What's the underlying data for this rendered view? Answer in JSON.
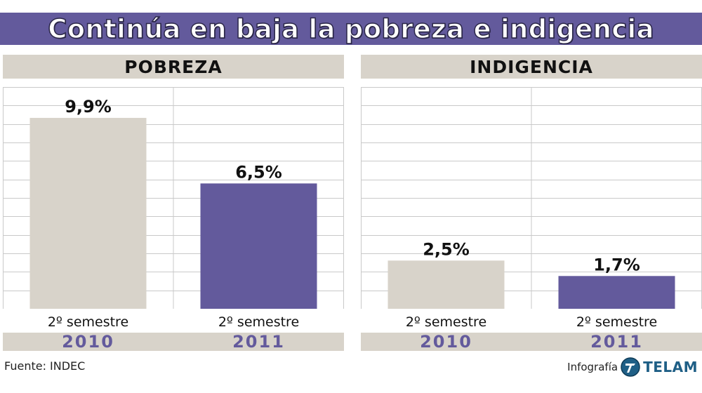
{
  "title": "Continúa en baja la pobreza e indigencia",
  "colors": {
    "accent": "#635a9c",
    "beige": "#d8d3ca",
    "grid": "#c9c9c9"
  },
  "chart_data": [
    {
      "type": "bar",
      "title": "POBREZA",
      "categories": [
        "2º semestre 2010",
        "2º semestre 2011"
      ],
      "semester_labels": [
        "2º semestre",
        "2º semestre"
      ],
      "years": [
        "2010",
        "2011"
      ],
      "values": [
        9.9,
        6.5
      ],
      "value_labels": [
        "9,9%",
        "6,5%"
      ],
      "bar_colors": [
        "#d8d3ca",
        "#635a9c"
      ],
      "ylim": [
        0,
        11.5
      ],
      "grid": true
    },
    {
      "type": "bar",
      "title": "INDIGENCIA",
      "categories": [
        "2º semestre 2010",
        "2º semestre 2011"
      ],
      "semester_labels": [
        "2º semestre",
        "2º semestre"
      ],
      "years": [
        "2010",
        "2011"
      ],
      "values": [
        2.5,
        1.7
      ],
      "value_labels": [
        "2,5%",
        "1,7%"
      ],
      "bar_colors": [
        "#d8d3ca",
        "#635a9c"
      ],
      "ylim": [
        0,
        11.5
      ],
      "grid": true
    }
  ],
  "footer": {
    "source": "Fuente: INDEC",
    "credit_prefix": "Infografía",
    "credit_brand": "TELAM"
  }
}
